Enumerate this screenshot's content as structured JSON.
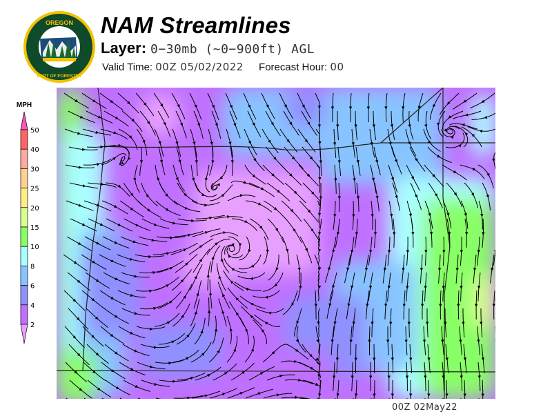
{
  "header": {
    "logo_text": "OREGON DEPARTMENT OF FORESTRY",
    "title": "NAM Streamlines",
    "layer_label": "Layer:",
    "layer_value": "0−30mb (~0−900ft) AGL",
    "valid_label": "Valid Time:",
    "valid_value": "00Z 05/02/2022",
    "forecast_label": "Forecast Hour:",
    "forecast_value": "00"
  },
  "legend": {
    "unit": "MPH",
    "ticks": [
      "50",
      "40",
      "30",
      "25",
      "20",
      "15",
      "10",
      "8",
      "6",
      "4",
      "2"
    ],
    "colors": {
      "over_50": "#ff55bb",
      "40_50": "#ff6464",
      "30_40": "#ffaaa0",
      "25_30": "#ffd090",
      "20_25": "#ffee88",
      "15_20": "#d8ff90",
      "10_15": "#88ff66",
      "8_10": "#aaffff",
      "6_8": "#88c4ff",
      "4_6": "#9090ff",
      "2_4": "#c070ff",
      "under_2": "#e8a0ff"
    }
  },
  "footer": {
    "timestamp": "00Z 02May22"
  }
}
